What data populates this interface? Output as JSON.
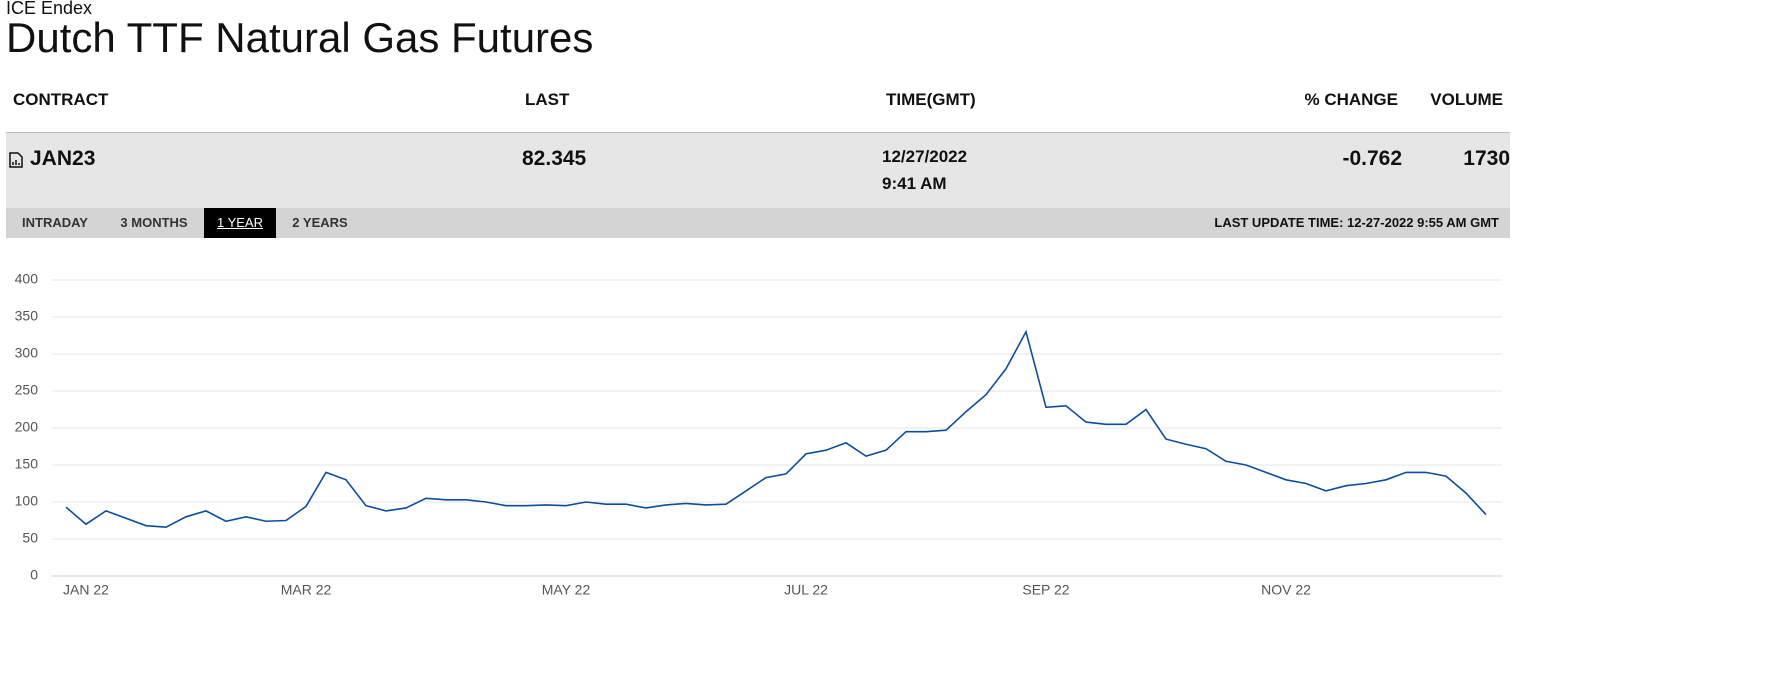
{
  "header": {
    "exchange": "ICE Endex",
    "title": "Dutch TTF Natural Gas Futures"
  },
  "table": {
    "columns": [
      "CONTRACT",
      "LAST",
      "TIME(GMT)",
      "% CHANGE",
      "VOLUME"
    ],
    "row": {
      "contract": "JAN23",
      "last": "82.345",
      "date": "12/27/2022",
      "time": "9:41 AM",
      "change": "-0.762",
      "volume": "1730"
    }
  },
  "tabs": [
    "INTRADAY",
    "3 MONTHS",
    "1 YEAR",
    "2 YEARS"
  ],
  "last_update": "LAST UPDATE TIME: 12-27-2022 9:55 AM GMT",
  "chart_data": {
    "type": "line",
    "color": "#0a4f9c",
    "grid": true,
    "categories": [
      null,
      "JAN 22",
      null,
      null,
      null,
      null,
      null,
      null,
      null,
      null,
      null,
      null,
      "MAR 22",
      null,
      null,
      null,
      null,
      null,
      null,
      null,
      null,
      null,
      null,
      null,
      null,
      "MAY 22",
      null,
      null,
      null,
      null,
      null,
      null,
      null,
      null,
      null,
      null,
      null,
      "JUL 22",
      null,
      null,
      null,
      null,
      null,
      null,
      null,
      null,
      null,
      null,
      null,
      "SEP 22",
      null,
      null,
      null,
      null,
      null,
      null,
      null,
      null,
      null,
      null,
      null,
      "NOV 22",
      null,
      null,
      null,
      null,
      null,
      null,
      null,
      null,
      null,
      null
    ],
    "values": [
      93,
      70,
      88,
      78,
      68,
      66,
      80,
      88,
      74,
      80,
      74,
      75,
      94,
      140,
      130,
      95,
      88,
      92,
      105,
      103,
      103,
      100,
      95,
      95,
      96,
      95,
      100,
      97,
      97,
      92,
      96,
      98,
      96,
      97,
      115,
      133,
      138,
      165,
      170,
      180,
      162,
      170,
      195,
      195,
      197,
      222,
      245,
      280,
      330,
      228,
      230,
      208,
      205,
      205,
      225,
      185,
      178,
      172,
      155,
      150,
      140,
      130,
      125,
      115,
      122,
      125,
      130,
      140,
      140,
      135,
      112,
      83
    ],
    "ylim": [
      0,
      400
    ],
    "yticks": [
      0,
      50,
      100,
      150,
      200,
      250,
      300,
      350,
      400
    ]
  }
}
